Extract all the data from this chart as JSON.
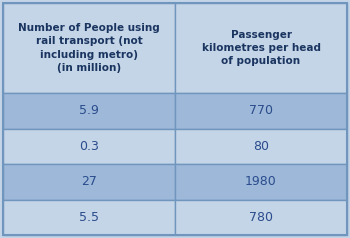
{
  "col1_header": "Number of People using\nrail transport (not\nincluding metro)\n(in million)",
  "col2_header": "Passenger\nkilometres per head\nof population",
  "rows": [
    [
      "5.9",
      "770"
    ],
    [
      "0.3",
      "80"
    ],
    [
      "27",
      "1980"
    ],
    [
      "5.5",
      "780"
    ]
  ],
  "header_bg": "#c5d5e8",
  "row_dark_bg": "#9db8d9",
  "row_light_bg": "#c5d5e8",
  "border_color": "#7096be",
  "header_text_color": "#1a3560",
  "data_text_color": "#2b4c8c",
  "fig_bg": "#c5d5e8",
  "outer_border": "#7096be"
}
